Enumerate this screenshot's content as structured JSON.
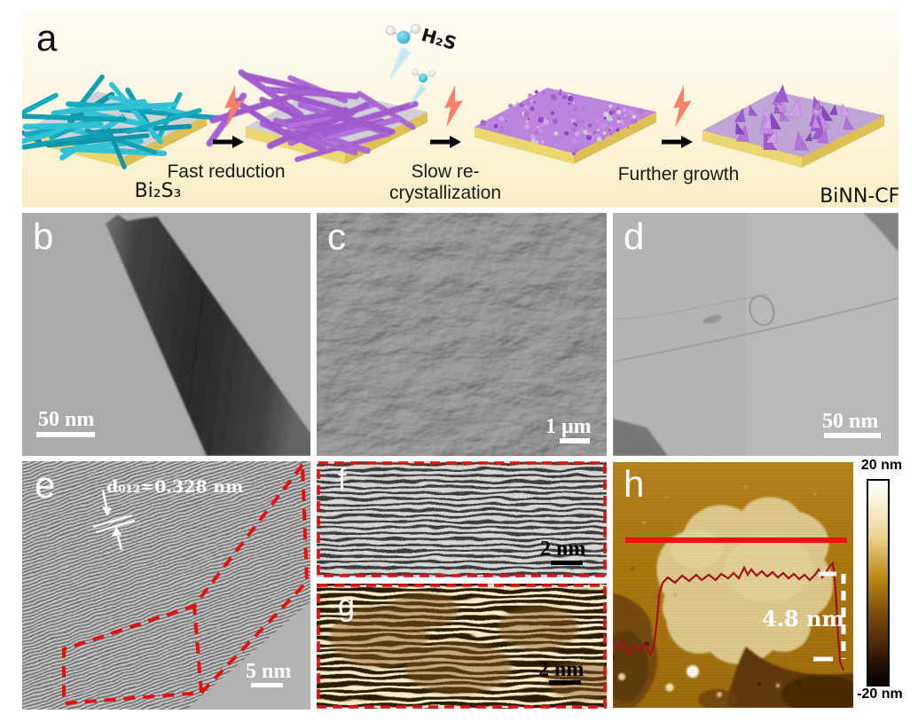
{
  "panels": {
    "a": {
      "label": "a",
      "start_material": "Bi₂S₃",
      "end_material": "BiNN-CFs",
      "gas": "H₂S",
      "steps": [
        "Fast reduction",
        "Slow re-crystallization",
        "Further growth"
      ]
    },
    "b": {
      "label": "b",
      "scale": "50 nm"
    },
    "c": {
      "label": "c",
      "scale": "1 μm"
    },
    "d": {
      "label": "d",
      "scale": "50 nm"
    },
    "e": {
      "label": "e",
      "scale": "5 nm",
      "annotation": "d₀₁₂=0.328 nm"
    },
    "f": {
      "label": "f",
      "scale": "2 nm"
    },
    "g": {
      "label": "g",
      "scale": "2 nm"
    },
    "h": {
      "label": "h",
      "thickness": "4.8 nm",
      "colorbar_max": "20 nm",
      "colorbar_min": "-20 nm"
    }
  },
  "colors": {
    "bi2s3_nanorod_teal": "#14acc1",
    "bismuth_purple": "#b77fd9",
    "substrate_yellow": "#ecd670",
    "lightning_bolt": "#f9816b",
    "annotation_red": "#e41111",
    "afm_scan_line": "#ee1111"
  }
}
